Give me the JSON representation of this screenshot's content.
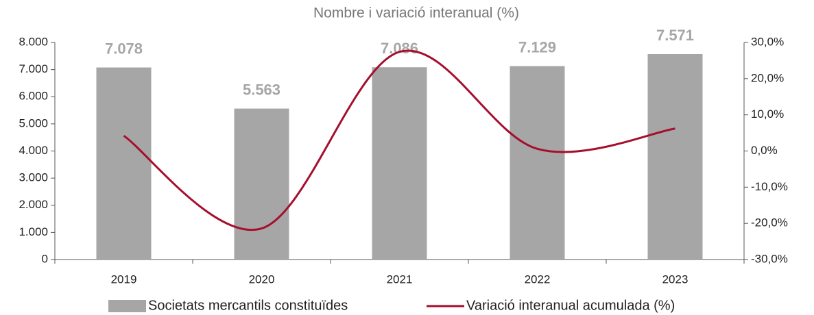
{
  "chart_data": {
    "type": "bar",
    "title": "Nombre i variació interanual (%)",
    "categories": [
      "2019",
      "2020",
      "2021",
      "2022",
      "2023"
    ],
    "series": [
      {
        "name": "Societats mercantils constituïdes",
        "color": "#a6a6a6",
        "values": [
          7078,
          5563,
          7086,
          7129,
          7571
        ],
        "value_labels": [
          "7.078",
          "5.563",
          "7.086",
          "7.129",
          "7.571"
        ]
      },
      {
        "name": "Variació interanual acumulada (%)",
        "color": "#a50f2d",
        "values": [
          4.2,
          -21.4,
          27.4,
          0.6,
          6.2
        ],
        "axis": "y2",
        "type": "line"
      }
    ],
    "ylim": [
      0,
      8000
    ],
    "yticks": [
      {
        "value": 0,
        "label": "0"
      },
      {
        "value": 1000,
        "label": "1.000"
      },
      {
        "value": 2000,
        "label": "2.000"
      },
      {
        "value": 3000,
        "label": "3.000"
      },
      {
        "value": 4000,
        "label": "4.000"
      },
      {
        "value": 5000,
        "label": "5.000"
      },
      {
        "value": 6000,
        "label": "6.000"
      },
      {
        "value": 7000,
        "label": "7.000"
      },
      {
        "value": 8000,
        "label": "8.000"
      }
    ],
    "y2lim": [
      -30,
      30
    ],
    "y2ticks": [
      {
        "value": -30,
        "label": "-30,0%"
      },
      {
        "value": -20,
        "label": "-20,0%"
      },
      {
        "value": -10,
        "label": "-10,0%"
      },
      {
        "value": 0,
        "label": "0,0%"
      },
      {
        "value": 10,
        "label": "10,0%"
      },
      {
        "value": 20,
        "label": "20,0%"
      },
      {
        "value": 30,
        "label": "30,0%"
      }
    ],
    "legend": "bottom"
  }
}
